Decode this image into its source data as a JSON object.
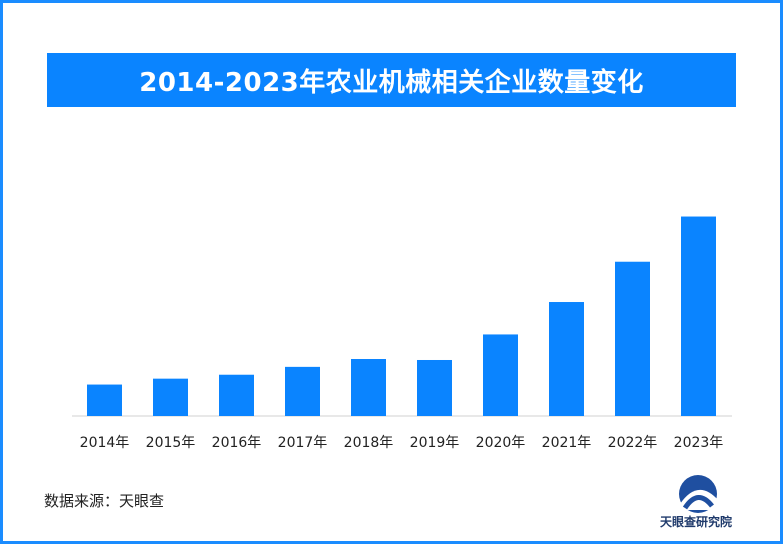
{
  "title": "2014-2023年农业机械相关企业数量变化",
  "source_label": "数据来源：天眼查",
  "logo": {
    "icon": "tianyancha-logo-icon",
    "text": "天眼查研究院"
  },
  "colors": {
    "bar": "#0a84ff",
    "title_bg": "#0a84ff",
    "frame": "#1a8cff"
  },
  "chart_data": {
    "type": "bar",
    "categories": [
      "2014年",
      "2015年",
      "2016年",
      "2017年",
      "2018年",
      "2019年",
      "2020年",
      "2021年",
      "2022年",
      "2023年"
    ],
    "values": [
      32,
      38,
      42,
      50,
      58,
      57,
      83,
      116,
      157,
      203
    ],
    "title": "2014-2023年农业机械相关企业数量变化",
    "xlabel": "",
    "ylabel": "",
    "ylim": [
      0,
      230
    ],
    "grid": false,
    "legend": "none",
    "y_axis_visible": false
  }
}
